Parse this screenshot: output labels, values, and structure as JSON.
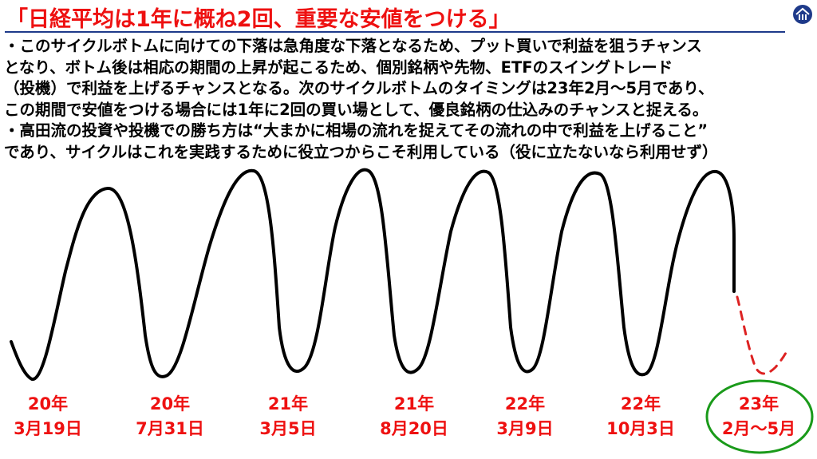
{
  "title": "「日経平均は1年に概ね2回、重要な安値をつける」",
  "logo_icon": "roof-house-icon",
  "paragraph_lines": [
    "・このサイクルボトムに向けての下落は急角度な下落となるため、プット買いで利益を狙うチャンス",
    "となり、ボトム後は相応の期間の上昇が起こるため、個別銘柄や先物、ETFのスイングトレード",
    "（投機）で利益を上げるチャンスとなる。次のサイクルボトムのタイミングは23年2月～5月であり、",
    "この期間で安値をつける場合には1年に2回の買い場として、優良銘柄の仕込みのチャンスと捉える。",
    "・高田流の投資や投機での勝ち方は“大まかに相場の流れを捉えてその流れの中で利益を上げること”",
    "であり、サイクルはこれを実践するために役立つからこそ利用している（役に立たないなら利用せず）"
  ],
  "bottoms": [
    {
      "year": "20年",
      "date": "3月19日"
    },
    {
      "year": "20年",
      "date": "7月31日"
    },
    {
      "year": "21年",
      "date": "3月5日"
    },
    {
      "year": "21年",
      "date": "8月20日"
    },
    {
      "year": "22年",
      "date": "3月9日"
    },
    {
      "year": "22年",
      "date": "10月3日"
    },
    {
      "year": "23年",
      "date": "2月～5月"
    }
  ],
  "colors": {
    "title": "#ee1111",
    "dates": "#ee1111",
    "projection": "#dd2222",
    "highlight_circle": "#1a9a1a",
    "wave": "#000000",
    "rule": "#1e3a8a"
  }
}
